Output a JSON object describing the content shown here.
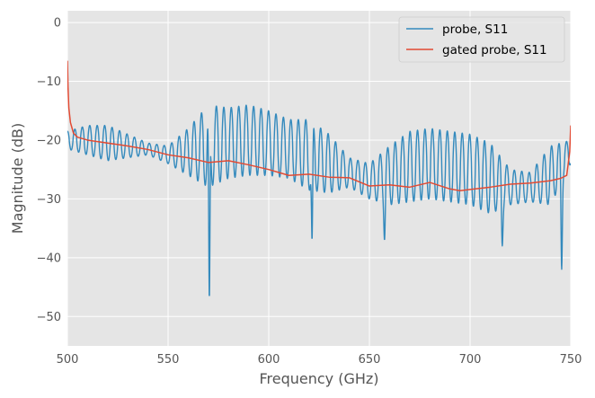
{
  "chart_data": {
    "type": "line",
    "title": "",
    "xlabel": "Frequency (GHz)",
    "ylabel": "Magnitude (dB)",
    "xlim": [
      500,
      750
    ],
    "ylim": [
      -55,
      2
    ],
    "xticks": [
      500,
      550,
      600,
      650,
      700,
      750
    ],
    "yticks": [
      0,
      -10,
      -20,
      -30,
      -40,
      -50
    ],
    "xtick_labels": [
      "500",
      "550",
      "600",
      "650",
      "700",
      "750"
    ],
    "ytick_labels": [
      "0",
      "−10",
      "−20",
      "−30",
      "−40",
      "−50"
    ],
    "grid": true,
    "style": "ggplot",
    "legend": "top-right",
    "series": [
      {
        "name": "probe, S11",
        "color": "#348abd",
        "base": [
          [
            500,
            -20
          ],
          [
            510,
            -20
          ],
          [
            520,
            -20.5
          ],
          [
            530,
            -21
          ],
          [
            540,
            -21.5
          ],
          [
            550,
            -22.5
          ],
          [
            560,
            -22
          ],
          [
            570,
            -21
          ],
          [
            580,
            -20.5
          ],
          [
            590,
            -20
          ],
          [
            600,
            -20.5
          ],
          [
            610,
            -21.5
          ],
          [
            620,
            -22.5
          ],
          [
            630,
            -24
          ],
          [
            640,
            -25.5
          ],
          [
            650,
            -27
          ],
          [
            660,
            -26
          ],
          [
            670,
            -24.5
          ],
          [
            680,
            -24
          ],
          [
            690,
            -24.5
          ],
          [
            700,
            -25
          ],
          [
            710,
            -26.5
          ],
          [
            720,
            -28
          ],
          [
            730,
            -28
          ],
          [
            740,
            -26
          ],
          [
            750,
            -22
          ]
        ],
        "amp": [
          [
            500,
            1.5
          ],
          [
            510,
            2.5
          ],
          [
            520,
            3
          ],
          [
            530,
            2
          ],
          [
            540,
            1
          ],
          [
            550,
            1.5
          ],
          [
            560,
            4
          ],
          [
            570,
            7
          ],
          [
            580,
            6
          ],
          [
            590,
            6
          ],
          [
            600,
            5.5
          ],
          [
            610,
            5
          ],
          [
            620,
            6
          ],
          [
            630,
            5
          ],
          [
            640,
            2.5
          ],
          [
            650,
            3
          ],
          [
            660,
            5
          ],
          [
            670,
            6
          ],
          [
            680,
            6
          ],
          [
            690,
            6
          ],
          [
            700,
            6
          ],
          [
            710,
            6
          ],
          [
            720,
            3
          ],
          [
            730,
            2.5
          ],
          [
            740,
            5
          ],
          [
            750,
            2
          ]
        ],
        "period_ghz": 3.7,
        "dips": [
          [
            570.5,
            -47
          ],
          [
            745.5,
            -42
          ],
          [
            716,
            -38
          ],
          [
            657.5,
            -37
          ],
          [
            621.5,
            -37
          ]
        ]
      },
      {
        "name": "gated probe, S11",
        "color": "#e24a33",
        "points": [
          [
            500,
            -6.5
          ],
          [
            500.3,
            -11
          ],
          [
            500.7,
            -14.5
          ],
          [
            501.5,
            -17
          ],
          [
            503,
            -18.8
          ],
          [
            505,
            -19.5
          ],
          [
            510,
            -20
          ],
          [
            520,
            -20.5
          ],
          [
            530,
            -21
          ],
          [
            540,
            -21.6
          ],
          [
            550,
            -22.5
          ],
          [
            560,
            -23
          ],
          [
            570,
            -23.8
          ],
          [
            580,
            -23.5
          ],
          [
            590,
            -24.2
          ],
          [
            600,
            -25
          ],
          [
            610,
            -26
          ],
          [
            620,
            -25.8
          ],
          [
            630,
            -26.3
          ],
          [
            640,
            -26.4
          ],
          [
            650,
            -27.8
          ],
          [
            660,
            -27.6
          ],
          [
            670,
            -28
          ],
          [
            680,
            -27.2
          ],
          [
            690,
            -28.3
          ],
          [
            695,
            -28.6
          ],
          [
            700,
            -28.4
          ],
          [
            710,
            -28
          ],
          [
            720,
            -27.5
          ],
          [
            730,
            -27.3
          ],
          [
            740,
            -26.9
          ],
          [
            745,
            -26.5
          ],
          [
            748,
            -26
          ],
          [
            749.5,
            -22
          ],
          [
            750,
            -17.5
          ]
        ]
      }
    ]
  }
}
